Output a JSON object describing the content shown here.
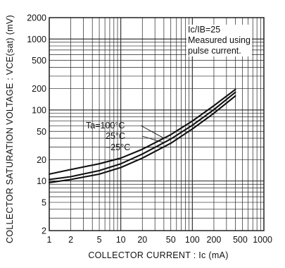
{
  "chart_data": {
    "type": "line",
    "title": "",
    "xlabel": "COLLECTOR CURRENT : Ic (mA)",
    "ylabel": "COLLECTOR SATURATION VOLTAGE : VCE(sat) (mV)",
    "x_scale": "log",
    "y_scale": "log",
    "xlim": [
      1,
      1000
    ],
    "ylim": [
      2,
      2000
    ],
    "x_ticks": [
      1,
      2,
      5,
      10,
      20,
      50,
      100,
      200,
      500,
      1000
    ],
    "x_tick_labels": [
      "1",
      "2",
      "5",
      "10",
      "20",
      "50",
      "100",
      "200",
      "500",
      "1000"
    ],
    "y_ticks": [
      2,
      5,
      10,
      20,
      50,
      100,
      200,
      500,
      1000,
      2000
    ],
    "y_tick_labels": [
      "2",
      "5",
      "10",
      "20",
      "50",
      "100",
      "200",
      "500",
      "1000",
      "2000"
    ],
    "grid": true,
    "annotations": [
      "Ic/IB=25",
      "Measured using",
      "pulse current."
    ],
    "series": [
      {
        "name": "Ta=100°C",
        "x": [
          1,
          2,
          5,
          10,
          20,
          50,
          100,
          200,
          400
        ],
        "y": [
          12.5,
          14.5,
          17.5,
          21,
          28,
          45,
          70,
          115,
          195
        ]
      },
      {
        "name": "25°C",
        "x": [
          1,
          2,
          5,
          10,
          20,
          50,
          100,
          200,
          400
        ],
        "y": [
          10.5,
          11.5,
          14,
          17.5,
          24,
          39,
          61,
          101,
          178
        ]
      },
      {
        "name": "−25°C",
        "x": [
          1,
          2,
          5,
          10,
          20,
          50,
          100,
          200,
          400
        ],
        "y": [
          9.5,
          10.5,
          12.5,
          15.5,
          21,
          34,
          54,
          90,
          158
        ]
      }
    ]
  }
}
